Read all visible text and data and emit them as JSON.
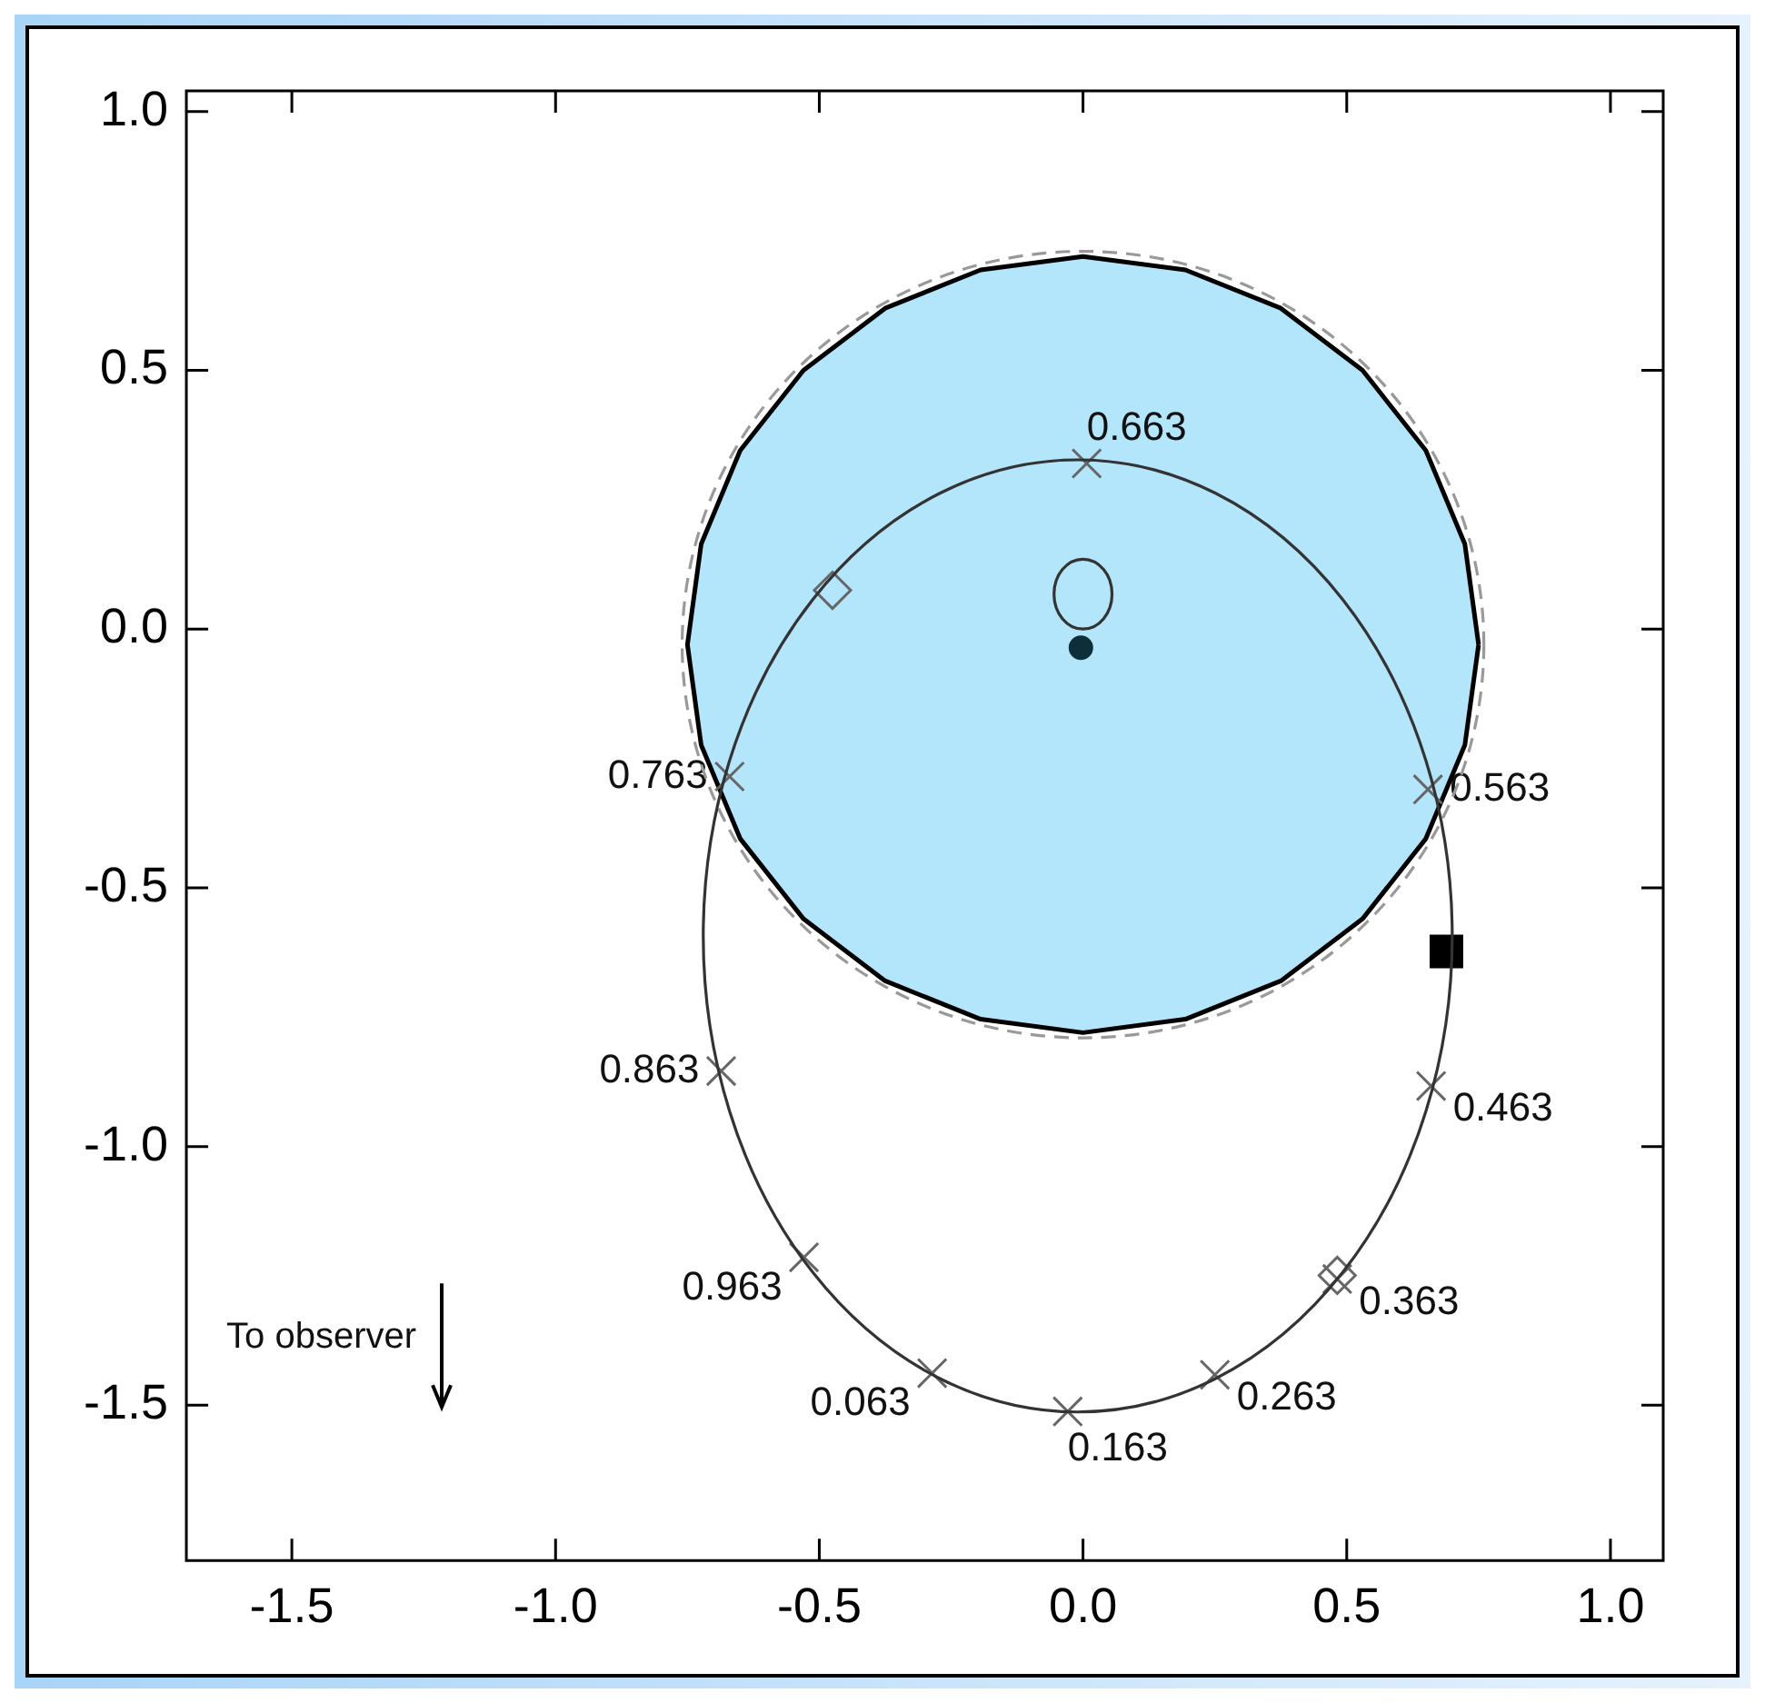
{
  "chart_data": {
    "type": "scatter",
    "xlim": [
      -1.7,
      1.1
    ],
    "ylim": [
      -1.8,
      1.04
    ],
    "xticks": [
      -1.5,
      {
        "value": -1,
        "label": "-1.0"
      },
      -0.5,
      {
        "value": 0,
        "label": "0.0"
      },
      0.5,
      {
        "value": 1,
        "label": "1.0"
      }
    ],
    "yticks": [
      {
        "value": 1,
        "label": "1.0"
      },
      0.5,
      {
        "value": 0,
        "label": "0.0"
      },
      -0.5,
      {
        "value": -1,
        "label": "-1.0"
      },
      -1.5
    ],
    "annotations": [
      "To observer",
      {
        "text": "0.663",
        "x": 0.007,
        "y": 0.32
      },
      {
        "text": "0.763",
        "x": -0.67,
        "y": -0.285
      },
      {
        "text": "0.563",
        "x": 0.654,
        "y": -0.31
      },
      {
        "text": "0.863",
        "x": -0.686,
        "y": -0.854
      },
      {
        "text": "0.463",
        "x": 0.66,
        "y": -0.883
      },
      {
        "text": "0.963",
        "x": -0.529,
        "y": -1.214
      },
      {
        "text": "0.363",
        "x": 0.482,
        "y": -1.256
      },
      {
        "text": "0.063",
        "x": -0.286,
        "y": -1.438
      },
      {
        "text": "0.163",
        "x": -0.029,
        "y": -1.512
      },
      {
        "text": "0.263",
        "x": 0.25,
        "y": -1.441
      }
    ],
    "series": [
      {
        "type": "area",
        "color": "#b3e5fb",
        "line_style": "solid",
        "marker": "none",
        "x": [
          0.75,
          0.724,
          0.65,
          0.53,
          0.375,
          0.194,
          0,
          -0.194,
          -0.375,
          -0.53,
          -0.65,
          -0.724,
          -0.75,
          -0.724,
          -0.65,
          -0.53,
          -0.375,
          -0.194,
          0,
          0.194,
          0.375,
          0.53,
          0.65,
          0.724,
          0.75
        ],
        "values": [
          -0.03,
          0.164,
          0.345,
          0.5,
          0.62,
          0.694,
          0.72,
          0.694,
          0.62,
          0.5,
          0.345,
          0.164,
          -0.03,
          -0.224,
          -0.405,
          -0.56,
          -0.68,
          -0.754,
          -0.78,
          -0.754,
          -0.68,
          -0.56,
          -0.405,
          -0.224,
          -0.03
        ]
      },
      {
        "color": "#666666",
        "marker": "cross",
        "x": [
          0.007,
          -0.67,
          0.654,
          -0.686,
          0.66,
          -0.529,
          0.482,
          -0.286,
          -0.029,
          0.25
        ],
        "values": [
          0.32,
          -0.285,
          -0.31,
          -0.854,
          -0.883,
          -1.214,
          -1.256,
          -1.438,
          -1.512,
          -1.441
        ]
      },
      {
        "color": "#666666",
        "marker": "diamond",
        "x": [
          -0.475,
          0.482
        ],
        "values": [
          0.075,
          -1.249
        ]
      },
      {
        "color": "#000000",
        "marker": "square",
        "x": [
          0.689
        ],
        "values": [
          -0.623
        ]
      },
      {
        "color": "#0d2f3a",
        "marker": "circle",
        "x": [
          -0.004
        ],
        "values": [
          -0.036
        ]
      }
    ]
  }
}
